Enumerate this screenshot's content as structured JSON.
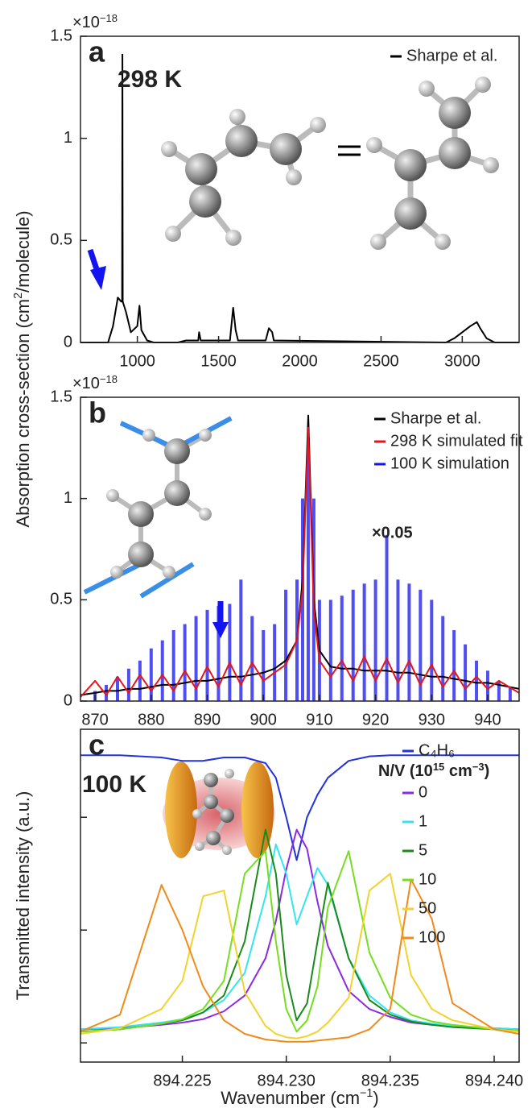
{
  "chart_data": [
    {
      "type": "line",
      "panel": "a",
      "label": "298 K",
      "multiplier": [
        "×10",
        "−18"
      ],
      "ylabel": [
        "Absorption cross-section (cm",
        "2",
        "/molecule)"
      ],
      "xlim": [
        650,
        3350
      ],
      "xticks": [
        1000,
        1500,
        2000,
        2500,
        3000
      ],
      "ylim": [
        0,
        1.5
      ],
      "yticks": [
        0,
        0.5,
        1,
        1.5
      ],
      "legend": "upper right",
      "series": [
        {
          "name": "Sharpe et al.",
          "color": "#000000",
          "x": [
            650,
            820,
            850,
            880,
            900,
            906,
            908,
            910,
            930,
            960,
            1000,
            1013,
            1025,
            1060,
            1100,
            1250,
            1300,
            1375,
            1380,
            1390,
            1570,
            1590,
            1605,
            1620,
            1790,
            1810,
            1830,
            1840,
            2900,
            2950,
            3000,
            3050,
            3090,
            3110,
            3150,
            3200,
            3350
          ],
          "values": [
            0,
            0,
            0.08,
            0.22,
            0.2,
            0.2,
            1.41,
            0.2,
            0.15,
            0.05,
            0.08,
            0.18,
            0.06,
            0.01,
            0,
            0,
            0.01,
            0.01,
            0.05,
            0.01,
            0.01,
            0.17,
            0.06,
            0.01,
            0.01,
            0.07,
            0.05,
            0.01,
            0,
            0.02,
            0.05,
            0.08,
            0.1,
            0.07,
            0.02,
            0,
            0
          ]
        }
      ]
    },
    {
      "type": "line",
      "panel": "b",
      "multiplier": [
        "×10",
        "−18"
      ],
      "annotation": "×0.05",
      "xlim": [
        867.4,
        945.6
      ],
      "xticks": [
        870,
        880,
        890,
        900,
        910,
        920,
        930,
        940
      ],
      "ylim": [
        0,
        1.5
      ],
      "yticks": [
        0,
        0.5,
        1,
        1.5
      ],
      "legend": "upper right",
      "series": [
        {
          "name": "Sharpe et al.",
          "color": "#000000",
          "x": [
            867.4,
            870,
            872,
            874,
            876,
            878,
            880,
            882,
            884,
            886,
            888,
            890,
            892,
            894,
            896,
            898,
            900,
            902,
            904,
            906,
            907,
            908,
            909,
            910,
            912,
            914,
            916,
            918,
            920,
            922,
            924,
            926,
            928,
            930,
            932,
            934,
            936,
            938,
            940,
            942,
            945.6
          ],
          "values": [
            0.03,
            0.04,
            0.05,
            0.05,
            0.06,
            0.06,
            0.07,
            0.08,
            0.08,
            0.09,
            0.1,
            0.1,
            0.11,
            0.12,
            0.12,
            0.13,
            0.14,
            0.16,
            0.2,
            0.3,
            0.6,
            1.41,
            0.5,
            0.25,
            0.17,
            0.16,
            0.16,
            0.15,
            0.15,
            0.15,
            0.14,
            0.14,
            0.13,
            0.12,
            0.12,
            0.11,
            0.1,
            0.09,
            0.09,
            0.08,
            0.06
          ]
        },
        {
          "name": "298 K simulated fit",
          "color": "#e8141c",
          "x": [
            867.4,
            870,
            872,
            874,
            876,
            878,
            880,
            882,
            884,
            886,
            888,
            890,
            892,
            894,
            896,
            898,
            900,
            902,
            904,
            906,
            907,
            908,
            909,
            910,
            912,
            914,
            916,
            918,
            920,
            922,
            924,
            926,
            928,
            930,
            932,
            934,
            936,
            938,
            940,
            942,
            945.6
          ],
          "values": [
            0.02,
            0.1,
            0.03,
            0.12,
            0.04,
            0.13,
            0.05,
            0.13,
            0.05,
            0.15,
            0.06,
            0.17,
            0.07,
            0.19,
            0.08,
            0.19,
            0.1,
            0.14,
            0.18,
            0.3,
            0.55,
            1.35,
            0.45,
            0.2,
            0.12,
            0.2,
            0.1,
            0.22,
            0.1,
            0.21,
            0.09,
            0.2,
            0.08,
            0.18,
            0.07,
            0.15,
            0.06,
            0.12,
            0.06,
            0.1,
            0.04
          ]
        },
        {
          "name": "100 K simulation",
          "color": "#1414f0",
          "style": "stick",
          "x": [
            870,
            872,
            874,
            876,
            878,
            880,
            882,
            884,
            886,
            888,
            890,
            892,
            894,
            896,
            898,
            900,
            902,
            904,
            906,
            907,
            908,
            909,
            910,
            912,
            914,
            916,
            918,
            920,
            922,
            924,
            926,
            928,
            930,
            932,
            934,
            936,
            938,
            940,
            942,
            944
          ],
          "values": [
            0.05,
            0.08,
            0.12,
            0.16,
            0.2,
            0.26,
            0.3,
            0.35,
            0.38,
            0.42,
            0.45,
            0.47,
            0.48,
            0.6,
            0.42,
            0.35,
            0.38,
            0.55,
            0.6,
            1.0,
            1.3,
            1.0,
            0.5,
            0.5,
            0.52,
            0.55,
            0.58,
            0.6,
            0.82,
            0.6,
            0.58,
            0.55,
            0.5,
            0.42,
            0.35,
            0.28,
            0.2,
            0.15,
            0.1,
            0.07
          ]
        }
      ]
    },
    {
      "type": "line",
      "panel": "c",
      "label": "100 K",
      "xlabel": [
        "Wavenumber (cm",
        "−1",
        ")"
      ],
      "ylabel": "Transmitted intensity (a.u.)",
      "legend_title": [
        "N/V (10",
        "15",
        " cm",
        "−3",
        ")"
      ],
      "legend": "upper right",
      "xlim": [
        894.2201,
        894.2412
      ],
      "xticks": [
        894.225,
        {
          "value": 894.23,
          "label": "894.230"
        },
        894.235,
        {
          "value": 894.24,
          "label": "894.240"
        }
      ],
      "ylim": [
        -0.17,
        2.78
      ],
      "yticks": [
        0,
        1,
        2
      ],
      "ytick_labels": false,
      "x": [
        894.2201,
        894.222,
        894.224,
        894.225,
        894.226,
        894.227,
        894.228,
        894.229,
        894.2295,
        894.23,
        894.2305,
        894.231,
        894.2315,
        894.232,
        894.233,
        894.234,
        894.235,
        894.236,
        894.237,
        894.238,
        894.24,
        894.2412
      ],
      "series": [
        {
          "name": "C₄H₆",
          "color": "#2233dd",
          "values": [
            2.55,
            2.55,
            2.53,
            2.5,
            2.5,
            2.53,
            2.53,
            2.48,
            2.35,
            2.0,
            1.62,
            2.0,
            2.2,
            2.35,
            2.5,
            2.54,
            2.55,
            2.55,
            2.55,
            2.55,
            2.55,
            2.55
          ]
        },
        {
          "name": "0",
          "color": "#8a2be2",
          "values": [
            0.12,
            0.13,
            0.16,
            0.18,
            0.21,
            0.28,
            0.42,
            0.75,
            1.08,
            1.54,
            1.89,
            1.72,
            1.25,
            0.86,
            0.46,
            0.3,
            0.23,
            0.18,
            0.16,
            0.15,
            0.13,
            0.12
          ]
        },
        {
          "name": "1",
          "color": "#33e5f0",
          "values": [
            0.12,
            0.14,
            0.18,
            0.21,
            0.27,
            0.38,
            0.62,
            1.3,
            1.76,
            1.5,
            1.05,
            1.3,
            1.55,
            1.4,
            0.75,
            0.42,
            0.27,
            0.2,
            0.17,
            0.15,
            0.13,
            0.12
          ]
        },
        {
          "name": "5",
          "color": "#1a8a1a",
          "values": [
            0.1,
            0.12,
            0.17,
            0.2,
            0.27,
            0.42,
            0.9,
            1.89,
            1.5,
            0.6,
            0.2,
            0.35,
            0.9,
            1.42,
            0.75,
            0.38,
            0.25,
            0.19,
            0.16,
            0.14,
            0.12,
            0.11
          ]
        },
        {
          "name": "10",
          "color": "#77dd22",
          "values": [
            0.1,
            0.12,
            0.17,
            0.21,
            0.3,
            0.55,
            1.5,
            1.7,
            0.9,
            0.3,
            0.1,
            0.2,
            0.5,
            1.2,
            1.7,
            0.8,
            0.4,
            0.25,
            0.19,
            0.16,
            0.12,
            0.11
          ]
        },
        {
          "name": "50",
          "color": "#f2d22e",
          "values": [
            0.08,
            0.13,
            0.3,
            0.55,
            1.3,
            1.35,
            0.45,
            0.15,
            0.08,
            0.05,
            0.04,
            0.06,
            0.1,
            0.18,
            0.4,
            1.35,
            1.5,
            0.6,
            0.3,
            0.2,
            0.12,
            0.1
          ]
        },
        {
          "name": "100",
          "color": "#f08a1a",
          "values": [
            0.1,
            0.25,
            1.4,
            1.0,
            0.5,
            0.2,
            0.08,
            0.03,
            0.02,
            0.01,
            0.01,
            0.01,
            0.02,
            0.03,
            0.05,
            0.12,
            0.3,
            1.45,
            1.1,
            0.35,
            0.12,
            0.08
          ]
        }
      ]
    }
  ]
}
